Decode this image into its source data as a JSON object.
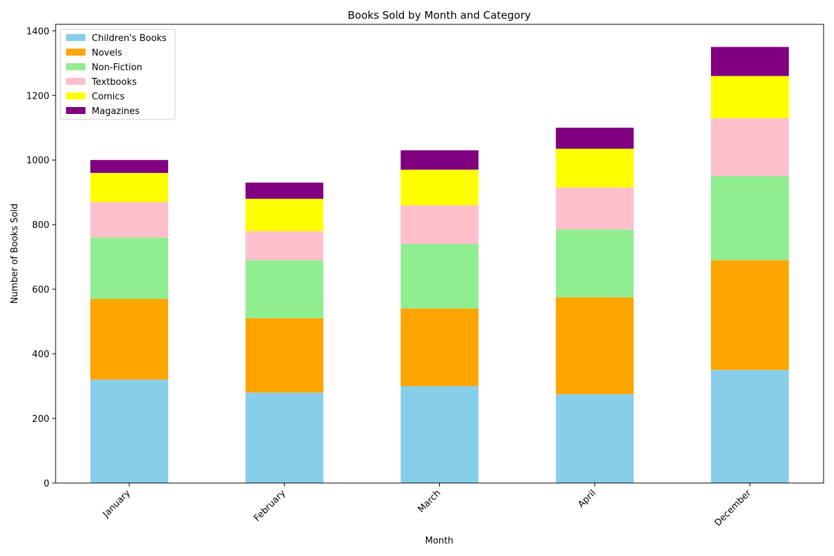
{
  "chart_data": {
    "type": "bar",
    "stacked": true,
    "title": "Books Sold by Month and Category",
    "xlabel": "Month",
    "ylabel": "Number of Books Sold",
    "categories": [
      "January",
      "February",
      "March",
      "April",
      "December"
    ],
    "ylim": [
      0,
      1420
    ],
    "yticks": [
      0,
      200,
      400,
      600,
      800,
      1000,
      1200,
      1400
    ],
    "grid": false,
    "legend_position": "top-left",
    "series": [
      {
        "name": "Children's Books",
        "color": "#87ceeb",
        "values": [
          320,
          280,
          300,
          275,
          350
        ]
      },
      {
        "name": "Novels",
        "color": "#ffa500",
        "values": [
          250,
          230,
          240,
          300,
          340
        ]
      },
      {
        "name": "Non-Fiction",
        "color": "#90ee90",
        "values": [
          190,
          180,
          200,
          210,
          260
        ]
      },
      {
        "name": "Textbooks",
        "color": "#ffc0cb",
        "values": [
          110,
          90,
          120,
          130,
          180
        ]
      },
      {
        "name": "Comics",
        "color": "#ffff00",
        "values": [
          90,
          100,
          110,
          120,
          130
        ]
      },
      {
        "name": "Magazines",
        "color": "#800080",
        "values": [
          40,
          50,
          60,
          65,
          90
        ]
      }
    ]
  }
}
